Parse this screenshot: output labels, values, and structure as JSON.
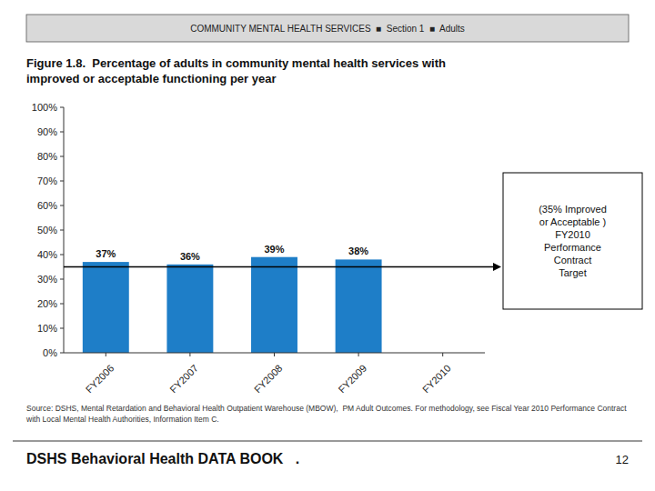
{
  "chart_data": {
    "type": "bar",
    "title": "Figure 1.8.  Percentage of adults in community mental health services with\nimproved or acceptable functioning per year",
    "categories": [
      "FY2006",
      "FY2007",
      "FY2008",
      "FY2009",
      "FY2010"
    ],
    "values": [
      37,
      36,
      39,
      38,
      null
    ],
    "value_labels": [
      "37%",
      "36%",
      "39%",
      "38%",
      null
    ],
    "data_labels": true,
    "color": "#1e7ec8",
    "ylim": [
      0,
      100
    ],
    "yticks": [
      {
        "value": 0,
        "label": "0%"
      },
      {
        "value": 10,
        "label": "10%"
      },
      {
        "value": 20,
        "label": "20%"
      },
      {
        "value": 30,
        "label": "30%"
      },
      {
        "value": 40,
        "label": "40%"
      },
      {
        "value": 50,
        "label": "50%"
      },
      {
        "value": 60,
        "label": "60%"
      },
      {
        "value": 70,
        "label": "70%"
      },
      {
        "value": 80,
        "label": "80%"
      },
      {
        "value": 90,
        "label": "90%"
      },
      {
        "value": 100,
        "label": "100%"
      }
    ],
    "grid": false,
    "annotations": [
      {
        "text": "COMMUNITY MENTAL HEALTH SERVICES  ■  Section 1  ■  Adults"
      },
      {
        "text": "(35% Improved\nor Acceptable )\nFY2010\nPerformance\nContract\nTarget",
        "value": 35
      },
      {
        "text": "Source: DSHS, Mental Retardation and Behavioral Health Outpatient Warehouse (MBOW),  PM Adult Outcomes. For methodology, see Fiscal Year 2010 Performance Contract\nwith Local Mental Health Authorities, Information Item C."
      },
      {
        "text": "DSHS Behavioral Health DATA BOOK   ."
      },
      {
        "text": "12"
      }
    ]
  }
}
